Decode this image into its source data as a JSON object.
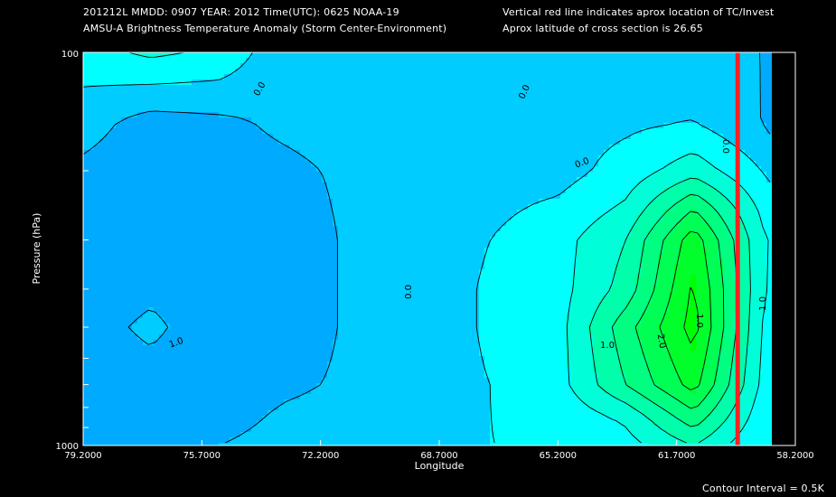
{
  "header": {
    "line1_left": "201212L  MMDD: 0907 YEAR: 2012 Time(UTC): 0625 NOAA-19",
    "line2_left": "AMSU-A Brightness Temperature Anomaly (Storm Center-Environment)",
    "line1_right": "Vertical red line indicates aprox location of TC/Invest",
    "line2_right": "Aprox latitude of cross section is 26.65"
  },
  "footer": {
    "contour_interval": "Contour Interval = 0.5K"
  },
  "colors": {
    "background": "#000000",
    "tc_line": "#ff2020",
    "fill_levels": [
      "#00aaff",
      "#00ccff",
      "#00ffff",
      "#00ffd9",
      "#00ffaa",
      "#00ff80",
      "#00ff55",
      "#00ff2b",
      "#00ff00"
    ]
  },
  "chart_data": {
    "type": "contour",
    "title": "AMSU-A Brightness Temperature Anomaly (Storm Center-Environment)",
    "xlabel": "Longitude",
    "ylabel": "Pressure (hPa)",
    "x_tick_labels": [
      "79.2000",
      "75.7000",
      "72.2000",
      "68.7000",
      "65.2000",
      "61.7000",
      "58.2000"
    ],
    "y_tick_labels": [
      "100",
      "1000"
    ],
    "xlim": [
      79.2,
      58.2
    ],
    "ylim": [
      1000,
      100
    ],
    "y_scale": "log",
    "contour_interval": 0.5,
    "contour_labels": [
      "0.0",
      "0.0",
      "0.0",
      "0.0",
      "0.0",
      "1.0",
      "1.0",
      "1.0",
      "2.0",
      "1.0"
    ],
    "tc_longitude": 59.9,
    "levels": [
      -1.0,
      -0.5,
      0.0,
      0.5,
      1.0,
      1.5,
      2.0,
      2.5,
      3.0
    ],
    "x": [
      79.2,
      77.2,
      75.2,
      73.2,
      71.2,
      69.2,
      67.2,
      65.2,
      63.2,
      61.2,
      59.2,
      58.2
    ],
    "pressure": [
      100,
      150,
      200,
      250,
      300,
      400,
      500,
      700,
      850,
      1000
    ],
    "values": [
      [
        0.3,
        0.6,
        0.4,
        -0.4,
        -0.4,
        -0.3,
        -0.2,
        -0.3,
        -0.2,
        -0.3,
        -0.5,
        -0.8
      ],
      [
        -0.3,
        -0.7,
        -0.6,
        -0.4,
        -0.3,
        -0.3,
        -0.2,
        -0.2,
        -0.1,
        0.0,
        -0.5,
        -1.0
      ],
      [
        -0.6,
        -0.8,
        -0.7,
        -0.6,
        -0.4,
        -0.4,
        -0.2,
        -0.2,
        0.2,
        0.8,
        0.0,
        -0.5
      ],
      [
        -0.7,
        -0.8,
        -0.8,
        -0.7,
        -0.4,
        -0.4,
        -0.1,
        0.1,
        0.6,
        2.0,
        0.4,
        0.0
      ],
      [
        -0.8,
        -0.8,
        -0.8,
        -0.8,
        -0.4,
        -0.4,
        0.0,
        0.3,
        1.0,
        2.8,
        0.6,
        0.1
      ],
      [
        -0.8,
        -0.6,
        -0.8,
        -0.8,
        -0.4,
        -0.4,
        0.1,
        0.3,
        1.2,
        3.1,
        0.6,
        0.0
      ],
      [
        -0.7,
        -0.4,
        -0.8,
        -0.8,
        -0.4,
        -0.4,
        0.1,
        0.3,
        1.8,
        3.2,
        0.5,
        0.0
      ],
      [
        -0.8,
        -0.7,
        -0.8,
        -0.6,
        -0.4,
        -0.3,
        0.0,
        0.3,
        1.5,
        2.7,
        0.4,
        0.0
      ],
      [
        -0.8,
        -0.8,
        -0.7,
        -0.4,
        -0.3,
        -0.2,
        0.0,
        0.1,
        0.6,
        1.8,
        0.2,
        0.0
      ],
      [
        -0.7,
        -0.7,
        -0.5,
        -0.3,
        -0.3,
        -0.2,
        0.0,
        0.0,
        0.3,
        1.0,
        0.0,
        0.0
      ]
    ]
  }
}
